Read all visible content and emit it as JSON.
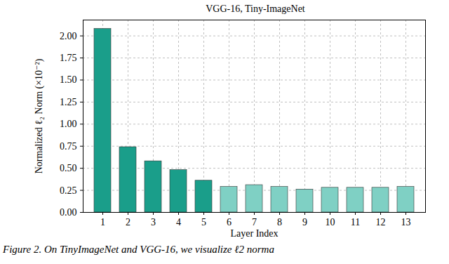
{
  "chart_data": {
    "type": "bar",
    "title": "VGG-16, Tiny-ImageNet",
    "x_label": "Layer Index",
    "y_label": "Normalized ℓ₂ Norm (×10⁻²)",
    "categories": [
      "1",
      "2",
      "3",
      "4",
      "5",
      "6",
      "7",
      "8",
      "9",
      "10",
      "11",
      "12",
      "13"
    ],
    "values": [
      2.08,
      0.74,
      0.58,
      0.48,
      0.36,
      0.29,
      0.31,
      0.29,
      0.26,
      0.28,
      0.28,
      0.28,
      0.29
    ],
    "colors": [
      "#1a9e8a",
      "#1a9e8a",
      "#1a9e8a",
      "#1a9e8a",
      "#1a9e8a",
      "#7fd0c4",
      "#7fd0c4",
      "#7fd0c4",
      "#7fd0c4",
      "#7fd0c4",
      "#7fd0c4",
      "#7fd0c4",
      "#7fd0c4"
    ],
    "ylim": [
      0,
      2.18
    ],
    "yticks": [
      {
        "value": 0,
        "label": "0.00"
      },
      {
        "value": 0.25,
        "label": "0.25"
      },
      {
        "value": 0.5,
        "label": "0.50"
      },
      {
        "value": 0.75,
        "label": "0.75"
      },
      {
        "value": 1,
        "label": "1.00"
      },
      {
        "value": 1.25,
        "label": "1.25"
      },
      {
        "value": 1.5,
        "label": "1.50"
      },
      {
        "value": 1.75,
        "label": "1.75"
      },
      {
        "value": 2,
        "label": "2.00"
      }
    ],
    "grid": true,
    "caption": "Figure 2. On TinyImageNet and VGG-16, we visualize ℓ2 norma"
  }
}
